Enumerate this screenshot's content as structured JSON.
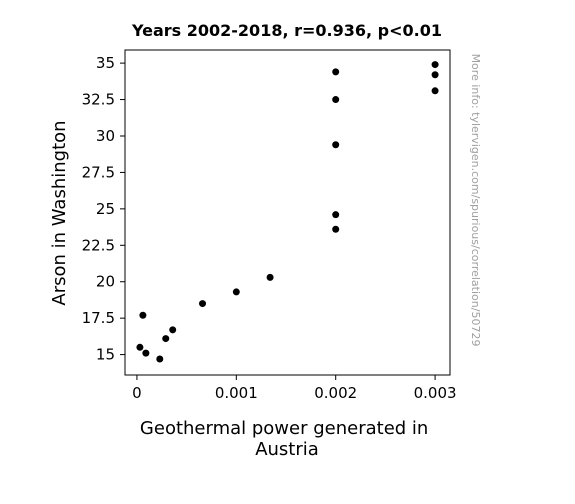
{
  "chart_data": {
    "type": "scatter",
    "title": "Years 2002-2018, r=0.936, p<0.01",
    "xlabel": "Geothermal power generated in Austria",
    "ylabel": "Arson in Washington",
    "xlim": [
      -0.00012,
      0.00315
    ],
    "ylim": [
      13.6,
      35.9
    ],
    "xticks": [
      0,
      0.001,
      0.002,
      0.003
    ],
    "xtick_labels": [
      "0",
      "0.001",
      "0.002",
      "0.003"
    ],
    "yticks": [
      15,
      17.5,
      20,
      22.5,
      25,
      27.5,
      30,
      32.5,
      35
    ],
    "ytick_labels": [
      "15",
      "17.5",
      "20",
      "22.5",
      "25",
      "27.5",
      "30",
      "32.5",
      "35"
    ],
    "grid": false,
    "marker_color": "#000000",
    "points": [
      {
        "x": 3e-05,
        "y": 15.5
      },
      {
        "x": 6e-05,
        "y": 17.7
      },
      {
        "x": 9e-05,
        "y": 15.1
      },
      {
        "x": 0.00023,
        "y": 14.7
      },
      {
        "x": 0.00029,
        "y": 16.1
      },
      {
        "x": 0.00036,
        "y": 16.7
      },
      {
        "x": 0.00066,
        "y": 18.5
      },
      {
        "x": 0.001,
        "y": 19.3
      },
      {
        "x": 0.00134,
        "y": 20.3
      },
      {
        "x": 0.002,
        "y": 34.4
      },
      {
        "x": 0.002,
        "y": 32.5
      },
      {
        "x": 0.002,
        "y": 29.4
      },
      {
        "x": 0.002,
        "y": 24.6
      },
      {
        "x": 0.002,
        "y": 23.6
      },
      {
        "x": 0.003,
        "y": 34.9
      },
      {
        "x": 0.003,
        "y": 34.2
      },
      {
        "x": 0.003,
        "y": 33.1
      }
    ]
  },
  "watermark": "More info: tylervigen.com/spurious/correlation/50729"
}
